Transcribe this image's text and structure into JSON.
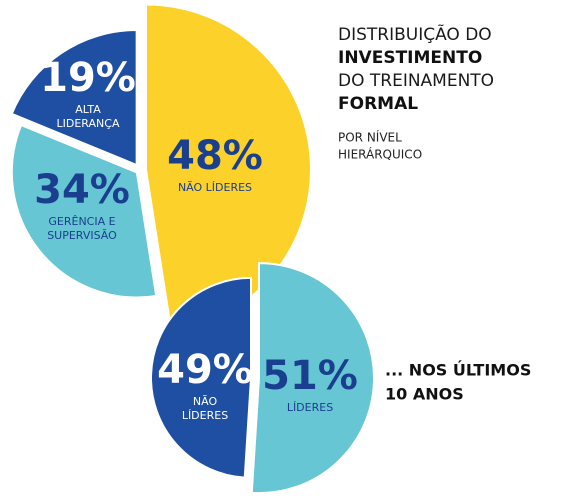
{
  "title_lines": [
    "DISTRIBUIÇÃO DO",
    "INVESTIMENTO",
    "DO TREINAMENTO",
    "FORMAL"
  ],
  "subtitle_lines": [
    "POR NÍVEL",
    "HIERÁRQUICO"
  ],
  "annotation_lines": [
    "... NOS ÚLTIMOS",
    "10 ANOS"
  ],
  "chart_data": [
    {
      "type": "pie",
      "categories": [
        [
          "NÃO LÍDERES"
        ],
        [
          "GERÊNCIA E",
          "SUPERVISÃO"
        ],
        [
          "ALTA",
          "LIDERANÇA"
        ]
      ],
      "values": [
        48,
        34,
        19
      ],
      "value_labels": [
        "48%",
        "34%",
        "19%"
      ],
      "colors": [
        "#fcd12a",
        "#67c6d3",
        "#1f4fa3"
      ]
    },
    {
      "type": "pie",
      "categories": [
        [
          "LÍDERES"
        ],
        [
          "NÃO",
          "LÍDERES"
        ]
      ],
      "values": [
        51,
        49
      ],
      "value_labels": [
        "51%",
        "49%"
      ],
      "colors": [
        "#67c6d3",
        "#1f4fa3"
      ]
    }
  ]
}
